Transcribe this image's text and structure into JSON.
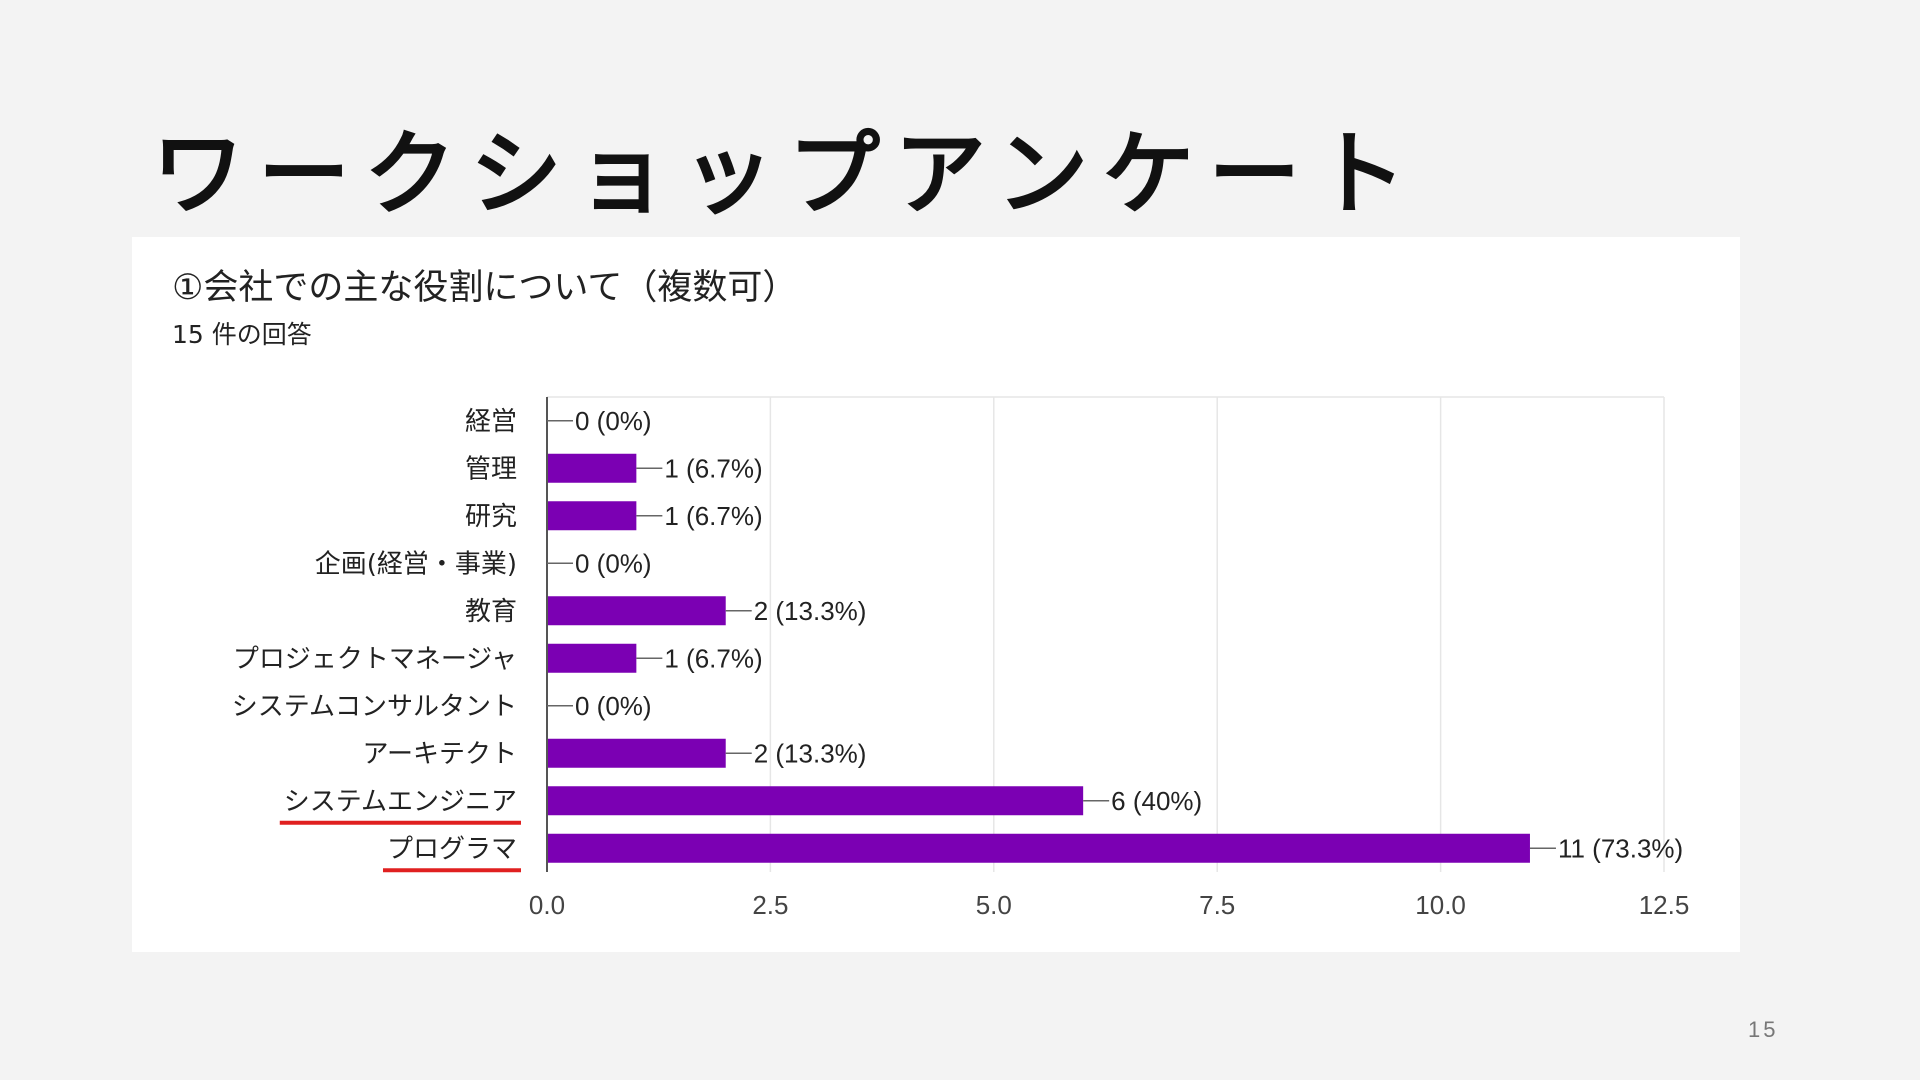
{
  "slide": {
    "title": "ワークショップアンケート",
    "page_number": "15"
  },
  "survey": {
    "question": "①会社での主な役割について（複数可）",
    "response_count": "15 件の回答"
  },
  "colors": {
    "bar": "#7b00b3",
    "underline": "#e02020",
    "grid": "#e6e6e6",
    "axis": "#555555",
    "text": "#222222"
  },
  "chart_data": {
    "type": "bar",
    "orientation": "horizontal",
    "title": "①会社での主な役割について（複数可）",
    "subtitle": "15 件の回答",
    "categories": [
      "経営",
      "管理",
      "研究",
      "企画(経営・事業)",
      "教育",
      "プロジェクトマネージャ",
      "システムコンサルタント",
      "アーキテクト",
      "システムエンジニア",
      "プログラマ"
    ],
    "values": [
      0,
      1,
      1,
      0,
      2,
      1,
      0,
      2,
      6,
      11
    ],
    "data_labels": [
      "0 (0%)",
      "1 (6.7%)",
      "1 (6.7%)",
      "0 (0%)",
      "2 (13.3%)",
      "1 (6.7%)",
      "0 (0%)",
      "2 (13.3%)",
      "6 (40%)",
      "11 (73.3%)"
    ],
    "highlighted": [
      "システムエンジニア",
      "プログラマ"
    ],
    "xlim": [
      0,
      12.5
    ],
    "xticks": [
      0,
      2.5,
      5,
      7.5,
      10,
      12.5
    ],
    "xtick_labels": [
      "0.0",
      "2.5",
      "5.0",
      "7.5",
      "10.0",
      "12.5"
    ],
    "xlabel": "",
    "ylabel": "",
    "grid": true
  }
}
